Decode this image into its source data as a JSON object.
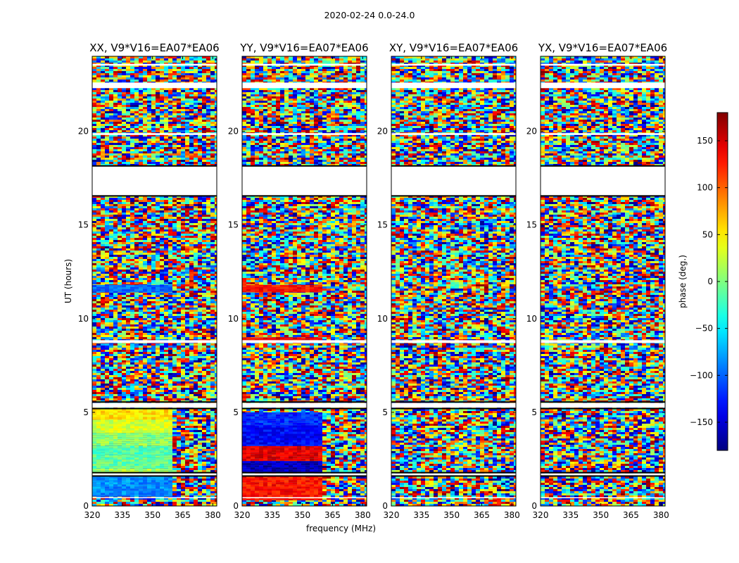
{
  "figure": {
    "suptitle": "2020-02-24 0.0-24.0"
  },
  "chart_data": [
    {
      "type": "heatmap",
      "title": "XX, V9*V16=EA07*EA06",
      "xlabel": "",
      "ylabel": "UT (hours)",
      "xlim": [
        320,
        382
      ],
      "ylim": [
        0,
        24
      ],
      "xticks": [
        "320",
        "335",
        "350",
        "365",
        "380"
      ],
      "yticks": [
        "0",
        "5",
        "10",
        "15",
        "20"
      ],
      "signal_region": {
        "x_range_mhz": [
          320,
          359.5
        ],
        "bands": [
          {
            "ut": [
              0.5,
              1.6
            ],
            "phase_deg": -85
          },
          {
            "ut": [
              1.7,
              2.0
            ],
            "phase_deg": 15
          },
          {
            "ut": [
              2.0,
              2.7
            ],
            "phase_deg": -10
          },
          {
            "ut": [
              2.7,
              3.2
            ],
            "phase_deg": -15
          },
          {
            "ut": [
              3.2,
              3.9
            ],
            "phase_deg": 5
          },
          {
            "ut": [
              3.9,
              4.6
            ],
            "phase_deg": 30
          },
          {
            "ut": [
              4.6,
              5.2
            ],
            "phase_deg": 55
          },
          {
            "ut": [
              11.4,
              11.8
            ],
            "phase_deg": -100
          }
        ]
      }
    },
    {
      "type": "heatmap",
      "title": "YY, V9*V16=EA07*EA06",
      "xlabel": "frequency (MHz)",
      "ylabel": "",
      "xlim": [
        320,
        382
      ],
      "ylim": [
        0,
        24
      ],
      "xticks": [
        "320",
        "335",
        "350",
        "365",
        "380"
      ],
      "yticks": [
        "0",
        "5",
        "10",
        "15",
        "20"
      ],
      "signal_region": {
        "x_range_mhz": [
          320,
          359.5
        ],
        "bands": [
          {
            "ut": [
              0.3,
              1.6
            ],
            "phase_deg": 130
          },
          {
            "ut": [
              1.8,
              2.4
            ],
            "phase_deg": -160
          },
          {
            "ut": [
              2.4,
              3.2
            ],
            "phase_deg": 145
          },
          {
            "ut": [
              3.2,
              4.3
            ],
            "phase_deg": -135
          },
          {
            "ut": [
              4.3,
              5.0
            ],
            "phase_deg": -120
          },
          {
            "ut": [
              8.8,
              9.0
            ],
            "phase_deg": 140
          },
          {
            "ut": [
              11.4,
              11.8
            ],
            "phase_deg": 130
          }
        ]
      }
    },
    {
      "type": "heatmap",
      "title": "XY, V9*V16=EA07*EA06",
      "xlabel": "",
      "ylabel": "",
      "xlim": [
        320,
        382
      ],
      "ylim": [
        0,
        24
      ],
      "xticks": [
        "320",
        "335",
        "350",
        "365",
        "380"
      ],
      "yticks": [
        "0",
        "5",
        "10",
        "15",
        "20"
      ],
      "signal_region": null
    },
    {
      "type": "heatmap",
      "title": "YX, V9*V16=EA07*EA06",
      "xlabel": "",
      "ylabel": "",
      "xlim": [
        320,
        382
      ],
      "ylim": [
        0,
        24
      ],
      "xticks": [
        "320",
        "335",
        "350",
        "365",
        "380"
      ],
      "yticks": [
        "0",
        "5",
        "10",
        "15",
        "20"
      ],
      "signal_region": null
    }
  ],
  "shared": {
    "flagged_ut_ranges": [
      [
        18.15,
        16.55
      ],
      [
        0.45,
        0.47
      ],
      [
        1.62,
        1.74
      ],
      [
        5.25,
        5.5
      ],
      [
        8.7,
        8.85
      ],
      [
        19.8,
        19.9
      ],
      [
        22.3,
        22.6
      ],
      [
        23.5,
        23.6
      ]
    ],
    "colorbar": {
      "label": "phase (deg.)",
      "range": [
        -180,
        180
      ],
      "ticks": [
        "150",
        "100",
        "50",
        "0",
        "−50",
        "−100",
        "−150"
      ],
      "tick_values": [
        150,
        100,
        50,
        0,
        -50,
        -100,
        -150
      ],
      "colormap": "jet"
    }
  }
}
